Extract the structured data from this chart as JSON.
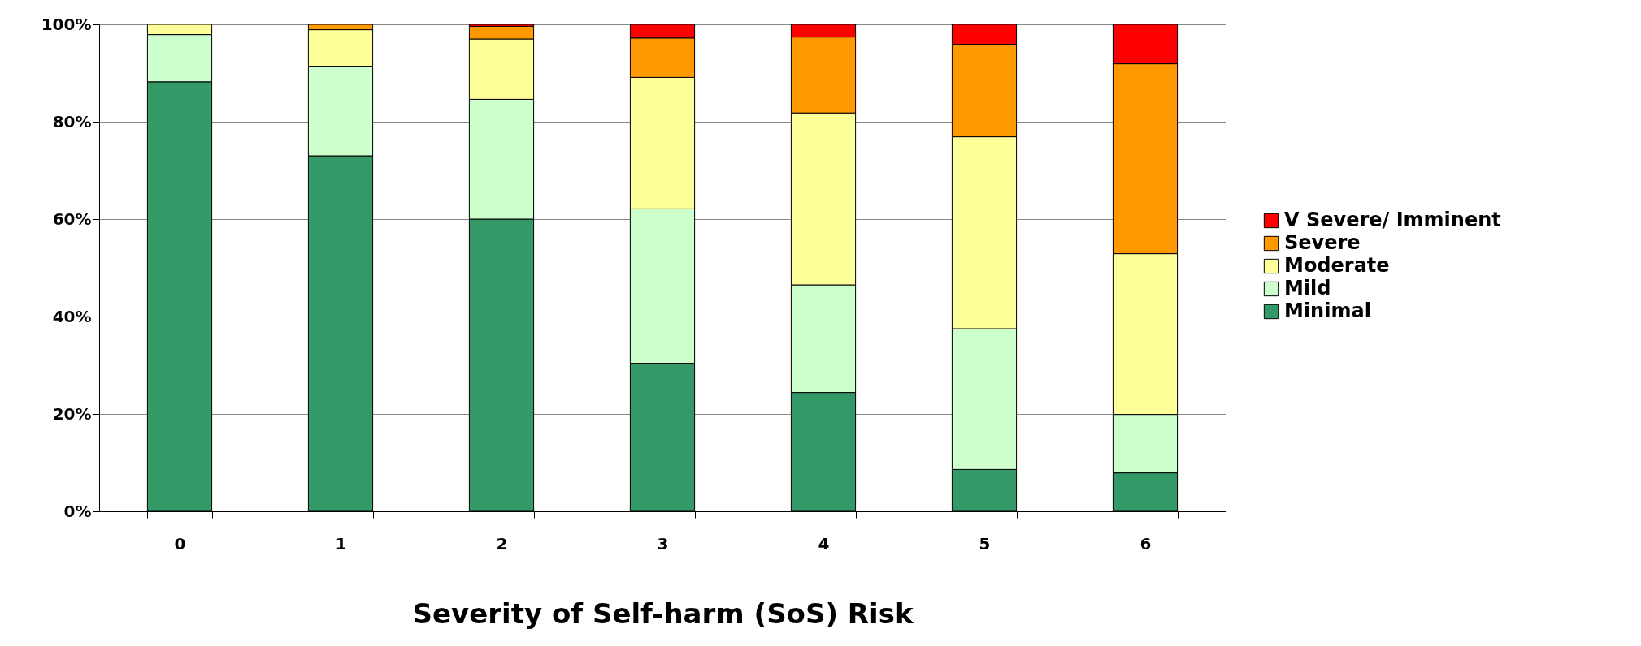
{
  "chart_data": {
    "type": "bar",
    "stacked": true,
    "xlabel": "Severity of Self-harm (SoS) Risk",
    "categories": [
      "0",
      "1",
      "2",
      "3",
      "4",
      "5",
      "6"
    ],
    "series": [
      {
        "name": "Minimal",
        "color": "#339966",
        "values": [
          88.2,
          73.0,
          60.0,
          30.4,
          24.4,
          8.6,
          7.9
        ]
      },
      {
        "name": "Mild",
        "color": "#ccffcc",
        "values": [
          9.7,
          18.4,
          24.6,
          31.7,
          22.1,
          28.9,
          12.0
        ]
      },
      {
        "name": "Moderate",
        "color": "#ffff99",
        "values": [
          2.1,
          7.5,
          12.4,
          27.0,
          35.3,
          39.4,
          33.0
        ]
      },
      {
        "name": "Severe",
        "color": "#ff9900",
        "values": [
          null,
          1.1,
          2.6,
          8.1,
          15.6,
          19.0,
          39.0
        ]
      },
      {
        "name": "V Severe/ Imminent",
        "color": "#ff0000",
        "values": [
          null,
          null,
          0.4,
          2.8,
          2.6,
          4.1,
          8.1
        ]
      }
    ],
    "ylim": [
      0,
      100
    ],
    "yticks": [
      {
        "value": 0,
        "label": "0%"
      },
      {
        "value": 20,
        "label": "20%"
      },
      {
        "value": 40,
        "label": "40%"
      },
      {
        "value": 60,
        "label": "60%"
      },
      {
        "value": 80,
        "label": "80%"
      },
      {
        "value": 100,
        "label": "100%"
      }
    ],
    "grid": "y",
    "legend": "right"
  }
}
